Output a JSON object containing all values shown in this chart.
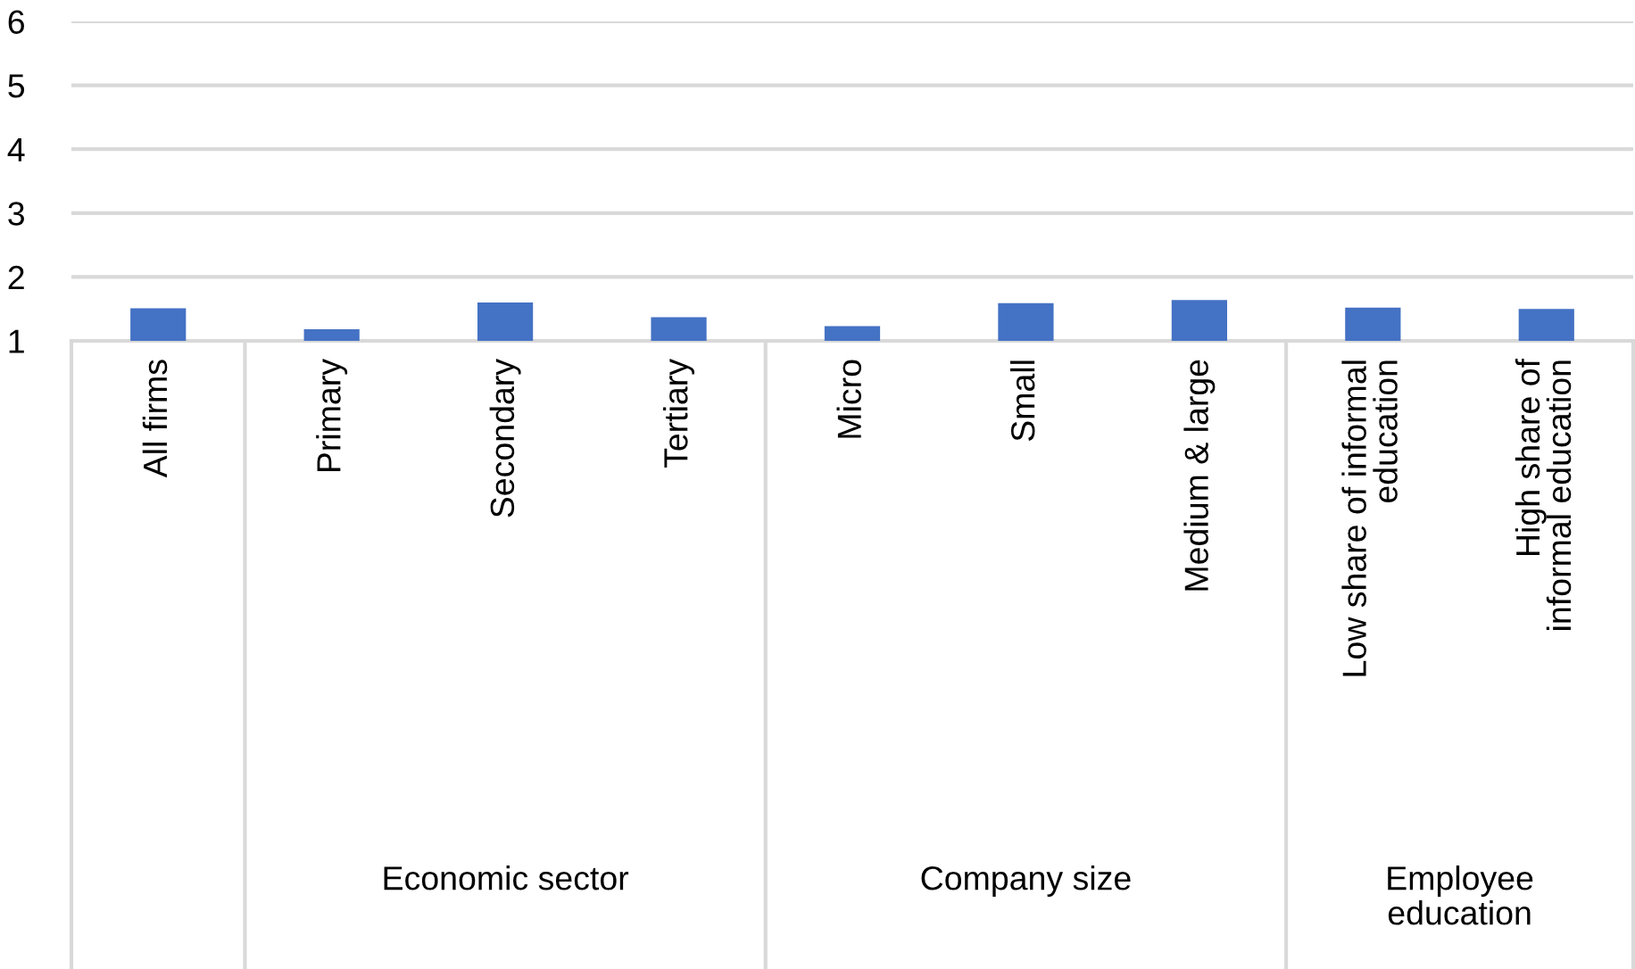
{
  "chart_data": {
    "type": "bar",
    "categories": [
      "All firms",
      "Primary",
      "Secondary",
      "Tertiary",
      "Micro",
      "Small",
      "Medium & large",
      "Low share of informal\neducation",
      "High share of\ninformal education"
    ],
    "values": [
      1.51,
      1.18,
      1.6,
      1.37,
      1.23,
      1.59,
      1.64,
      1.52,
      1.5
    ],
    "color": "#4472c4",
    "ylim": [
      1,
      6
    ],
    "yticks": [
      1,
      2,
      3,
      4,
      5,
      6
    ],
    "grid": "y",
    "annotations": [
      "Economic sector",
      "Company size",
      "Employee\neducation"
    ]
  }
}
